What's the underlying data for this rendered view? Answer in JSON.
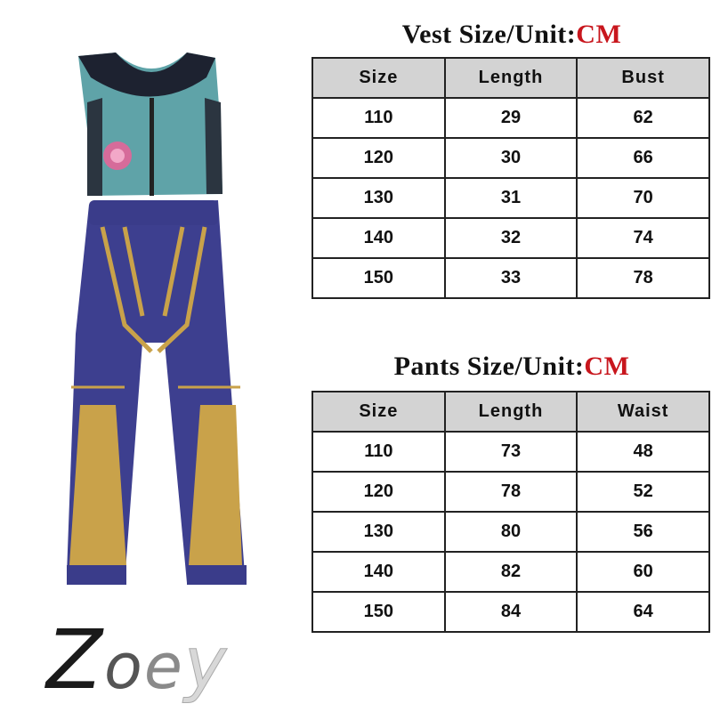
{
  "vest": {
    "title": "Vest Size/Unit:",
    "unit": "CM",
    "headers": [
      "Size",
      "Length",
      "Bust"
    ],
    "rows": [
      [
        "110",
        "29",
        "62"
      ],
      [
        "120",
        "30",
        "66"
      ],
      [
        "130",
        "31",
        "70"
      ],
      [
        "140",
        "32",
        "74"
      ],
      [
        "150",
        "33",
        "78"
      ]
    ]
  },
  "pants": {
    "title": "Pants Size/Unit:",
    "unit": "CM",
    "headers": [
      "Size",
      "Length",
      "Waist"
    ],
    "rows": [
      [
        "110",
        "73",
        "48"
      ],
      [
        "120",
        "78",
        "52"
      ],
      [
        "130",
        "80",
        "56"
      ],
      [
        "140",
        "82",
        "60"
      ],
      [
        "150",
        "84",
        "64"
      ]
    ]
  },
  "brand": {
    "letters": [
      "Z",
      "o",
      "e",
      "y"
    ]
  },
  "colors": {
    "unit_red": "#c8161d",
    "header_gray": "#d3d3d3",
    "pants_blue": "#3d3f8f",
    "pants_gold": "#c9a24a",
    "vest_teal": "#5fa3a8"
  }
}
